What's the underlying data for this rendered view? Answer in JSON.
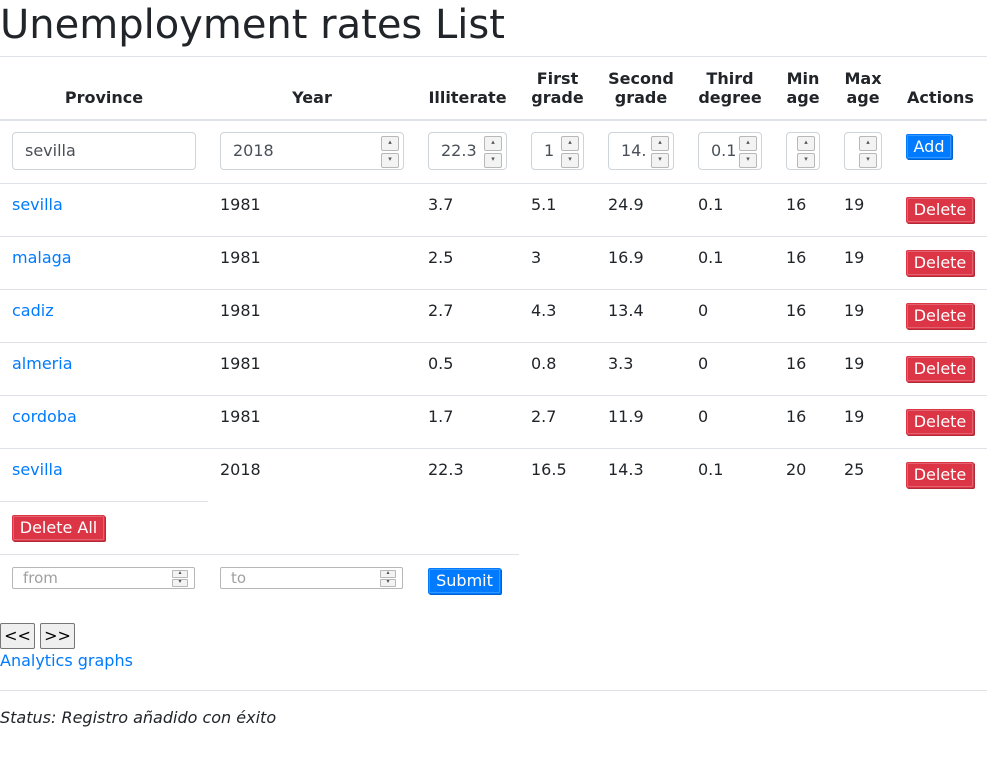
{
  "page": {
    "title": "Unemployment rates List"
  },
  "table": {
    "headers": [
      "Province",
      "Year",
      "Illiterate",
      "First\ngrade",
      "Second\ngrade",
      "Third\ndegree",
      "Min\nage",
      "Max\nage",
      "Actions"
    ],
    "new_row": {
      "province": "sevilla",
      "year": "2018",
      "illiterate": "22.3",
      "first_grade": "1",
      "second_grade": "14.",
      "third_degree": "0.1",
      "min_age": "",
      "max_age": "",
      "add_label": "Add"
    },
    "rows": [
      {
        "province": "sevilla",
        "year": "1981",
        "illiterate": "3.7",
        "first_grade": "5.1",
        "second_grade": "24.9",
        "third_degree": "0.1",
        "min_age": "16",
        "max_age": "19",
        "delete_label": "Delete"
      },
      {
        "province": "malaga",
        "year": "1981",
        "illiterate": "2.5",
        "first_grade": "3",
        "second_grade": "16.9",
        "third_degree": "0.1",
        "min_age": "16",
        "max_age": "19",
        "delete_label": "Delete"
      },
      {
        "province": "cadiz",
        "year": "1981",
        "illiterate": "2.7",
        "first_grade": "4.3",
        "second_grade": "13.4",
        "third_degree": "0",
        "min_age": "16",
        "max_age": "19",
        "delete_label": "Delete"
      },
      {
        "province": "almeria",
        "year": "1981",
        "illiterate": "0.5",
        "first_grade": "0.8",
        "second_grade": "3.3",
        "third_degree": "0",
        "min_age": "16",
        "max_age": "19",
        "delete_label": "Delete"
      },
      {
        "province": "cordoba",
        "year": "1981",
        "illiterate": "1.7",
        "first_grade": "2.7",
        "second_grade": "11.9",
        "third_degree": "0",
        "min_age": "16",
        "max_age": "19",
        "delete_label": "Delete"
      },
      {
        "province": "sevilla",
        "year": "2018",
        "illiterate": "22.3",
        "first_grade": "16.5",
        "second_grade": "14.3",
        "third_degree": "0.1",
        "min_age": "20",
        "max_age": "25",
        "delete_label": "Delete"
      }
    ],
    "delete_all_label": "Delete All"
  },
  "search": {
    "from_placeholder": "from",
    "to_placeholder": "to",
    "submit_label": "Submit"
  },
  "pager": {
    "prev_label": "<<",
    "next_label": ">>"
  },
  "analytics_link": "Analytics graphs",
  "status": "Status: Registro añadido con éxito",
  "colors": {
    "link": "#007bff",
    "danger": "#dc3545",
    "primary": "#007bff",
    "border": "#dee2e6"
  }
}
